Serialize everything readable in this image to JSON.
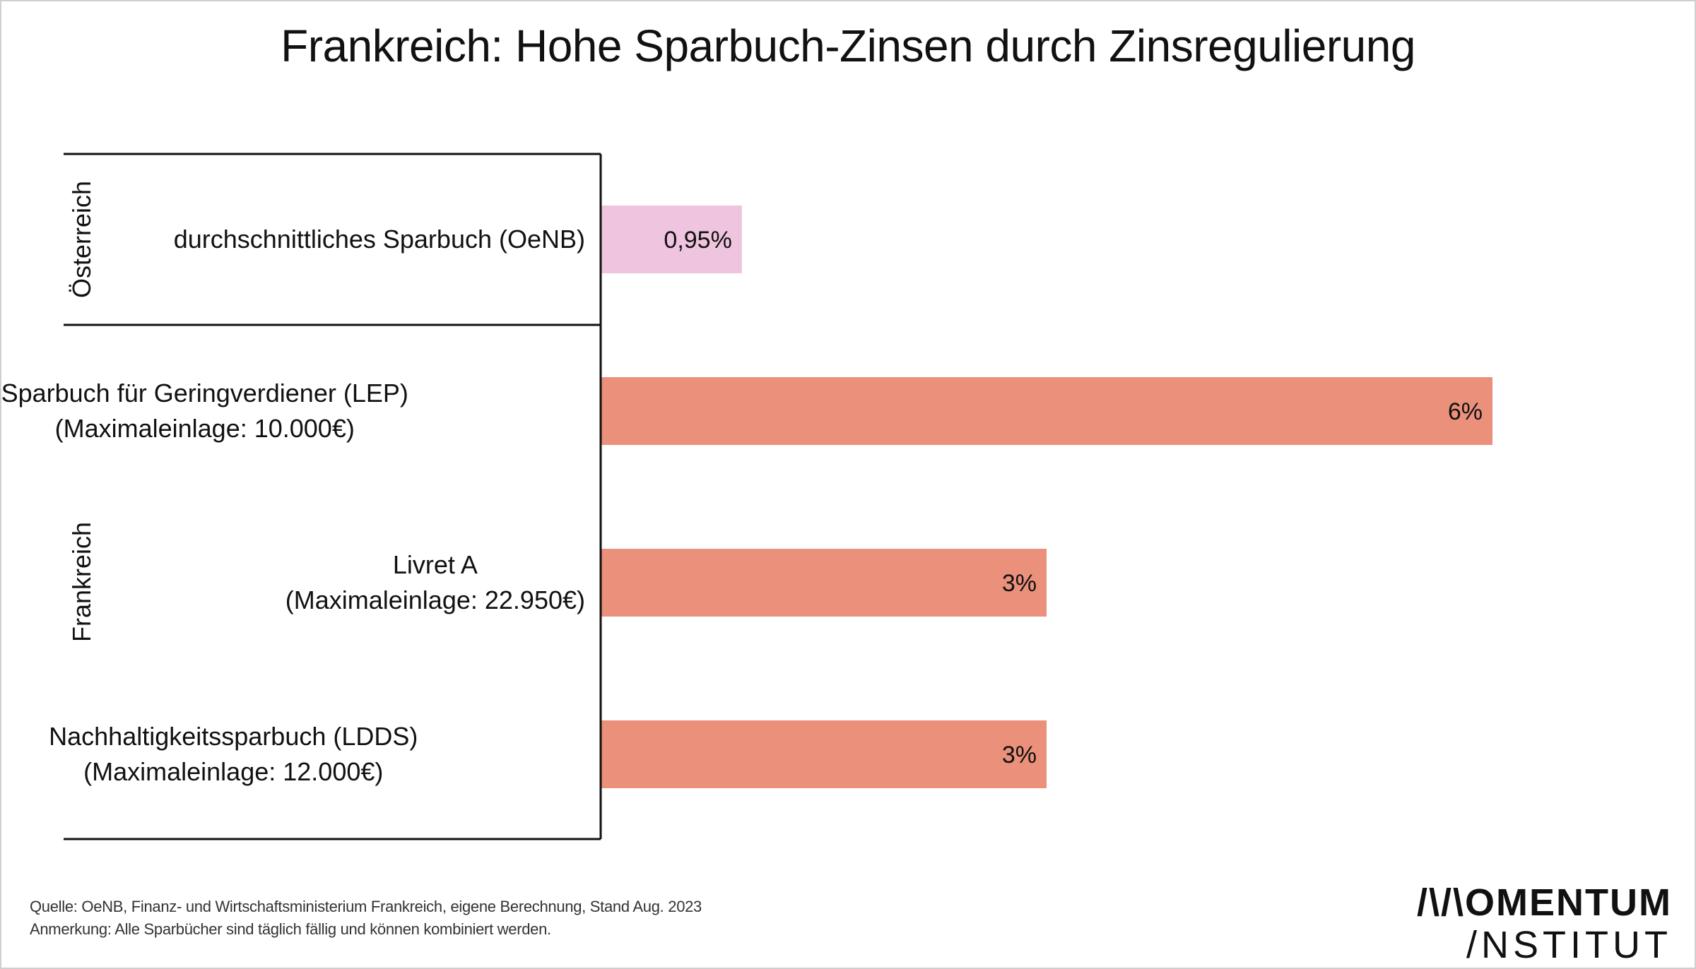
{
  "title": "Frankreich: Hohe Sparbuch-Zinsen durch Zinsregulierung",
  "chart_data": {
    "type": "bar",
    "orientation": "horizontal",
    "xlim": [
      0,
      6
    ],
    "groups": [
      {
        "name": "Österreich",
        "rows": [
          0
        ]
      },
      {
        "name": "Frankreich",
        "rows": [
          1,
          2,
          3
        ]
      }
    ],
    "categories": [
      [
        "durchschnittliches Sparbuch (OeNB)"
      ],
      [
        "Sparbuch für Geringverdiener (LEP)",
        "(Maximaleinlage: 10.000€)"
      ],
      [
        "Livret A",
        "(Maximaleinlage: 22.950€)"
      ],
      [
        "Nachhaltigkeitssparbuch (LDDS)",
        "(Maximaleinlage: 12.000€)"
      ]
    ],
    "values": [
      0.95,
      6,
      3,
      3
    ],
    "value_labels": [
      "0,95%",
      "6%",
      "3%",
      "3%"
    ],
    "colors": [
      "#efc4de",
      "#eb907b",
      "#eb907b",
      "#eb907b"
    ],
    "grid": false,
    "legend": "none"
  },
  "footer": {
    "source": "Quelle: OeNB, Finanz- und Wirtschaftsministerium Frankreich, eigene Berechnung, Stand Aug. 2023",
    "note": "Anmerkung: Alle Sparbücher sind täglich fällig und können kombiniert werden."
  },
  "logo": {
    "line1": "/\\/\\OMENTUM",
    "line2": "/NSTITUT"
  }
}
